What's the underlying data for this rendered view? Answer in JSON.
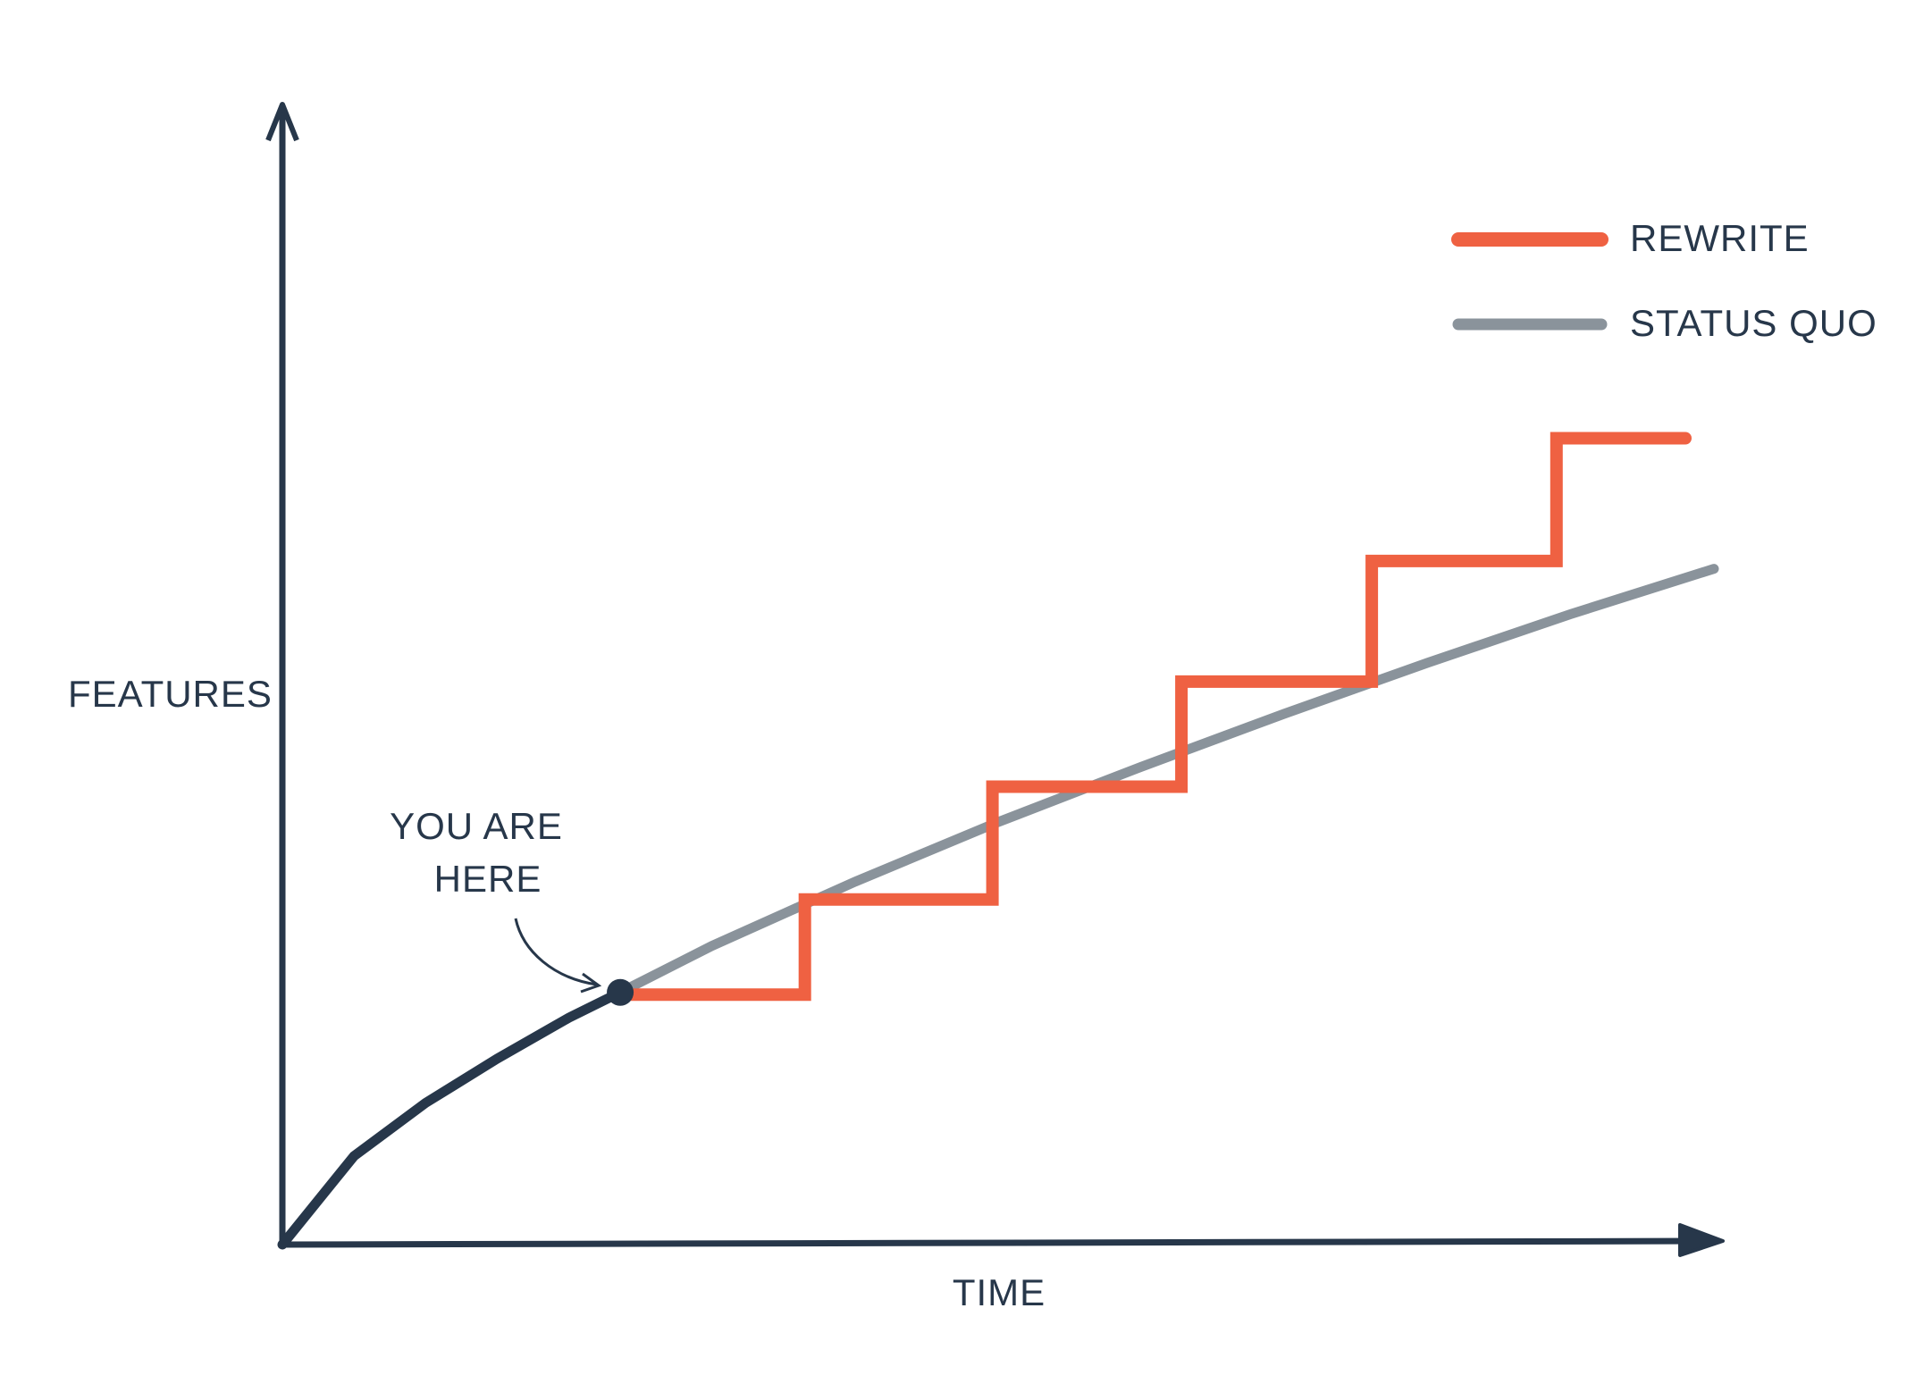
{
  "chart_data": {
    "type": "line",
    "x_label": "TIME",
    "y_label": "FEATURES",
    "xlim": [
      0,
      100
    ],
    "ylim": [
      0,
      100
    ],
    "legend": "upper right",
    "axis_color": "#27374a",
    "series": [
      {
        "name": "REWRITE",
        "color": "#ef6142",
        "x": [
          23.6,
          36.5,
          36.5,
          49.6,
          49.6,
          62.8,
          62.8,
          76.1,
          76.1,
          89,
          89,
          98
        ],
        "values": [
          22.6,
          22.6,
          31.2,
          31.2,
          41.4,
          41.4,
          50.9,
          50.9,
          61.8,
          61.8,
          72.9,
          72.9
        ]
      },
      {
        "name": "STATUS QUO",
        "color": "#8a939b",
        "past_color": "#27374a",
        "x": [
          0,
          5,
          10,
          15,
          20,
          23.6,
          30,
          40,
          50,
          60,
          70,
          80,
          90,
          100
        ],
        "values": [
          0,
          8.0,
          12.8,
          16.8,
          20.5,
          22.8,
          27.0,
          32.8,
          38.2,
          43.2,
          48.0,
          52.6,
          57.0,
          61.1
        ]
      }
    ],
    "annotation": {
      "lines": [
        "YOU ARE",
        "HERE"
      ],
      "x": 23.6,
      "y": 22.8
    }
  }
}
